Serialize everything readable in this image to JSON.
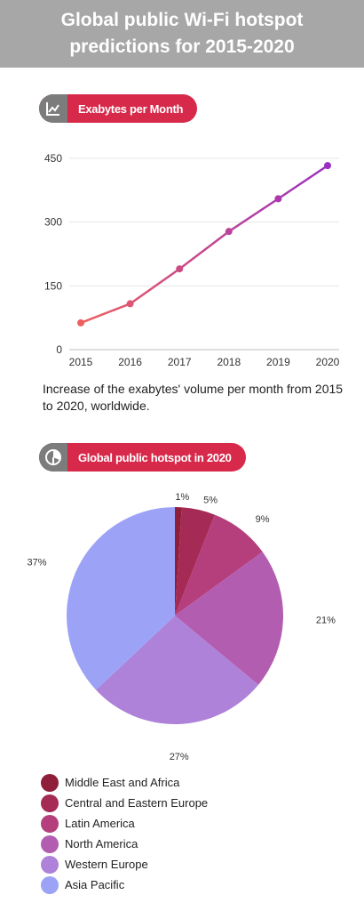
{
  "header": {
    "title": "Global public Wi-Fi hotspot predictions for 2015-2020"
  },
  "section1": {
    "label": "Exabytes per Month",
    "icon": "line-chart-icon"
  },
  "section2": {
    "label": "Global public hotspot in 2020",
    "icon": "pie-chart-icon"
  },
  "caption": "Increase of the exabytes' volume per month from 2015 to 2020, worldwide.",
  "colors": {
    "header_bg": "#a7a7a7",
    "pill": "#d7294a",
    "pill_icon_bg": "#7c7c7c",
    "line_start": "#ee5f5f",
    "line_end": "#9b30c0"
  },
  "chart_data": [
    {
      "type": "line",
      "x": [
        "2015",
        "2016",
        "2017",
        "2018",
        "2019",
        "2020"
      ],
      "series": [
        {
          "values": [
            63,
            108,
            190,
            278,
            355,
            433
          ]
        }
      ],
      "yticks": [
        "0",
        "150",
        "300",
        "450"
      ],
      "ylim": [
        0,
        450
      ],
      "grid": true
    },
    {
      "type": "pie",
      "slices": [
        {
          "label": "Middle East and Africa",
          "value": 1,
          "text": "1%",
          "color": "#8e1e3a"
        },
        {
          "label": "Central and Eastern Europe",
          "value": 5,
          "text": "5%",
          "color": "#a52a55"
        },
        {
          "label": "Latin America",
          "value": 9,
          "text": "9%",
          "color": "#b43f7c"
        },
        {
          "label": "North America",
          "value": 21,
          "text": "21%",
          "color": "#b35db1"
        },
        {
          "label": "Western Europe",
          "value": 27,
          "text": "27%",
          "color": "#ad82d8"
        },
        {
          "label": "Asia Pacific",
          "value": 37,
          "text": "37%",
          "color": "#9ca3f7"
        }
      ],
      "legend": "bottom"
    }
  ]
}
